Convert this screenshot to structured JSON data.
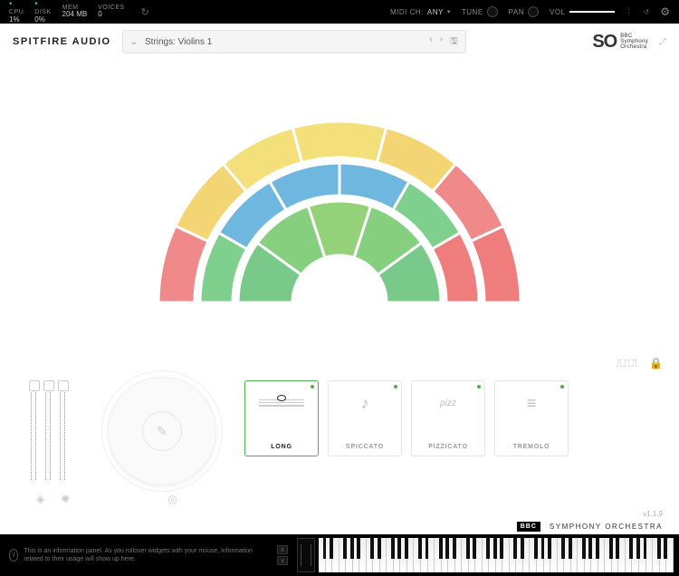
{
  "topbar": {
    "cpu_label": "CPU",
    "cpu_value": "1%",
    "disk_label": "DISK",
    "disk_value": "0%",
    "mem_label": "MEM",
    "mem_value": "204 MB",
    "voices_label": "VOICES",
    "voices_value": "0",
    "midi_ch_label": "MIDI CH:",
    "midi_ch_value": "ANY",
    "tune_label": "TUNE",
    "pan_label": "PAN",
    "vol_label": "VOL"
  },
  "header": {
    "brand": "SPITFIRE AUDIO",
    "preset_name": "Strings: Violins 1",
    "logo_main": "SO",
    "logo_line1": "BBC",
    "logo_line2": "Symphony",
    "logo_line3": "Orchestra"
  },
  "arc": {
    "segments_outer": [
      {
        "start": 180,
        "end": 155,
        "fill": "#f08a8a"
      },
      {
        "start": 155,
        "end": 130,
        "fill": "#f4d573"
      },
      {
        "start": 130,
        "end": 105,
        "fill": "#f4e07a"
      },
      {
        "start": 105,
        "end": 75,
        "fill": "#f4e07a"
      },
      {
        "start": 75,
        "end": 50,
        "fill": "#f4d573"
      },
      {
        "start": 50,
        "end": 25,
        "fill": "#f08a8a"
      },
      {
        "start": 25,
        "end": 0,
        "fill": "#ef7d7d"
      }
    ],
    "segments_mid": [
      {
        "start": 180,
        "end": 150,
        "fill": "#7fcf8e"
      },
      {
        "start": 150,
        "end": 120,
        "fill": "#6eb8e0"
      },
      {
        "start": 120,
        "end": 90,
        "fill": "#6eb8e0"
      },
      {
        "start": 90,
        "end": 60,
        "fill": "#6eb8e0"
      },
      {
        "start": 60,
        "end": 30,
        "fill": "#7fcf8e"
      },
      {
        "start": 30,
        "end": 0,
        "fill": "#ef7d7d"
      }
    ],
    "segments_inner": [
      {
        "start": 180,
        "end": 144,
        "fill": "#78c98a"
      },
      {
        "start": 144,
        "end": 108,
        "fill": "#86cf7e"
      },
      {
        "start": 108,
        "end": 72,
        "fill": "#94d27a"
      },
      {
        "start": 72,
        "end": 36,
        "fill": "#86cf7e"
      },
      {
        "start": 36,
        "end": 0,
        "fill": "#78c98a"
      }
    ],
    "radii": {
      "r_out_o": 200,
      "r_out_i": 160,
      "r_mid_o": 154,
      "r_mid_i": 118,
      "r_in_o": 112,
      "r_in_i": 52
    }
  },
  "articulations": [
    {
      "label": "LONG",
      "selected": true,
      "symbol": "whole"
    },
    {
      "label": "SPICCATO",
      "selected": false,
      "symbol": "♪"
    },
    {
      "label": "PIZZICATO",
      "selected": false,
      "symbol": "pizz"
    },
    {
      "label": "TREMOLO",
      "selected": false,
      "symbol": "≡"
    }
  ],
  "footer": {
    "bbc": "BBC",
    "symphony": "SYMPHONY ORCHESTRA",
    "version": "v1.1.9",
    "info_text": "This is an information panel. As you rollover widgets with your mouse, information related to their usage will show up here."
  }
}
